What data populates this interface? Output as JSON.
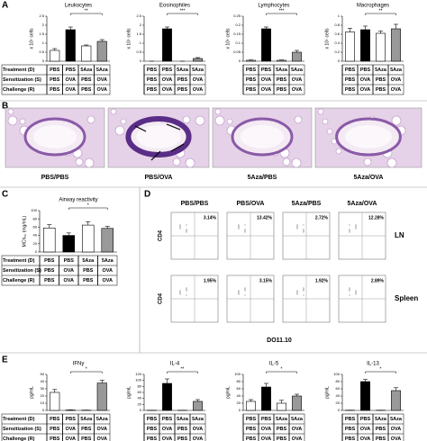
{
  "panel_labels": [
    "A",
    "B",
    "C",
    "D",
    "E"
  ],
  "condition_table": {
    "rows": [
      {
        "label": "Treatment (D)",
        "cells": [
          "PBS",
          "PBS",
          "5Aza",
          "5Aza"
        ]
      },
      {
        "label": "Sensitization (S)",
        "cells": [
          "PBS",
          "OVA",
          "PBS",
          "OVA"
        ]
      },
      {
        "label": "Challenge (R)",
        "cells": [
          "PBS",
          "OVA",
          "PBS",
          "OVA"
        ]
      }
    ]
  },
  "chart_data": [
    {
      "type": "bar",
      "title": "Leukocytes",
      "y_label": "x 10⁵ cells",
      "categories": [
        null,
        null,
        null,
        null
      ],
      "values": [
        0.6,
        1.75,
        0.85,
        1.1
      ],
      "errors": [
        0.1,
        0.15,
        0.05,
        0.1
      ],
      "colors": [
        "#ffffff",
        "#000000",
        "#ffffff",
        "#999999"
      ],
      "ylim": [
        0,
        2.5
      ],
      "yticks": [
        0,
        0.5,
        1,
        1.5,
        2,
        2.5
      ],
      "annotation": "**"
    },
    {
      "type": "bar",
      "title": "Eosinophiles",
      "y_label": "x 10⁵ cells",
      "categories": [
        null,
        null,
        null,
        null
      ],
      "values": [
        0,
        1.8,
        0,
        0.15
      ],
      "errors": [
        0,
        0.1,
        0,
        0.05
      ],
      "colors": [
        "#ffffff",
        "#000000",
        "#ffffff",
        "#999999"
      ],
      "ylim": [
        0,
        2.5
      ],
      "yticks": [
        0,
        0.5,
        1,
        1.5,
        2,
        2.5
      ],
      "annotation": "***"
    },
    {
      "type": "bar",
      "title": "Lymphocytes",
      "y_label": "x 10⁵ cells",
      "categories": [
        null,
        null,
        null,
        null
      ],
      "values": [
        0.005,
        0.18,
        0.005,
        0.05
      ],
      "errors": [
        0.002,
        0.01,
        0.002,
        0.01
      ],
      "colors": [
        "#ffffff",
        "#000000",
        "#ffffff",
        "#999999"
      ],
      "ylim": [
        0,
        0.25
      ],
      "yticks": [
        0,
        0.05,
        0.1,
        0.15,
        0.2,
        0.25
      ],
      "annotation": "***"
    },
    {
      "type": "bar",
      "title": "Macrophages",
      "y_label": "x 10⁵ cells",
      "categories": [
        null,
        null,
        null,
        null
      ],
      "values": [
        0.65,
        0.7,
        0.62,
        0.72
      ],
      "errors": [
        0.08,
        0.08,
        0.05,
        0.1
      ],
      "colors": [
        "#ffffff",
        "#000000",
        "#ffffff",
        "#999999"
      ],
      "ylim": [
        0,
        1
      ],
      "yticks": [
        0,
        0.2,
        0.4,
        0.6,
        0.8,
        1
      ],
      "annotation": "**"
    },
    {
      "type": "bar",
      "title": "Airway reactivity",
      "y_label": "MCh₅₀ (mg/mL)",
      "categories": [
        null,
        null,
        null,
        null
      ],
      "values": [
        58,
        40,
        65,
        57
      ],
      "errors": [
        8,
        6,
        8,
        5
      ],
      "colors": [
        "#ffffff",
        "#000000",
        "#ffffff",
        "#999999"
      ],
      "ylim": [
        0,
        100
      ],
      "yticks": [
        0,
        20,
        40,
        60,
        80,
        100
      ],
      "annotation": "*"
    },
    {
      "type": "bar",
      "title": "IFNγ",
      "y_label": "pg/mL",
      "categories": [
        null,
        null,
        null,
        null
      ],
      "values": [
        25,
        0.5,
        0.3,
        38
      ],
      "errors": [
        4,
        0.2,
        0.1,
        4
      ],
      "colors": [
        "#ffffff",
        "#000000",
        "#ffffff",
        "#999999"
      ],
      "ylim": [
        0,
        50
      ],
      "yticks": [
        0,
        10,
        20,
        30,
        40,
        50
      ],
      "annotation": "*"
    },
    {
      "type": "bar",
      "title": "IL-4",
      "y_label": "pg/mL",
      "categories": [
        null,
        null,
        null,
        null
      ],
      "values": [
        0.5,
        90,
        0.5,
        30
      ],
      "errors": [
        0.2,
        15,
        0.2,
        6
      ],
      "colors": [
        "#ffffff",
        "#000000",
        "#ffffff",
        "#999999"
      ],
      "ylim": [
        0,
        120
      ],
      "yticks": [
        0,
        20,
        40,
        60,
        80,
        100,
        120
      ],
      "annotation": "**"
    },
    {
      "type": "bar",
      "title": "IL-5",
      "y_label": "pg/mL",
      "categories": [
        null,
        null,
        null,
        null
      ],
      "values": [
        25,
        65,
        20,
        40
      ],
      "errors": [
        5,
        10,
        8,
        5
      ],
      "colors": [
        "#ffffff",
        "#000000",
        "#ffffff",
        "#999999"
      ],
      "ylim": [
        0,
        100
      ],
      "yticks": [
        0,
        20,
        40,
        60,
        80,
        100
      ],
      "annotation": "*"
    },
    {
      "type": "bar",
      "title": "IL-13",
      "y_label": "pg/mL",
      "categories": [
        null,
        null,
        null,
        null
      ],
      "values": [
        0.5,
        80,
        0.5,
        55
      ],
      "errors": [
        0.2,
        6,
        0.2,
        8
      ],
      "colors": [
        "#ffffff",
        "#000000",
        "#ffffff",
        "#999999"
      ],
      "ylim": [
        0,
        100
      ],
      "yticks": [
        0,
        20,
        40,
        60,
        80,
        100
      ],
      "annotation": "*"
    }
  ],
  "histology": {
    "labels": [
      "PBS/PBS",
      "PBS/OVA",
      "5Aza/PBS",
      "5Aza/OVA"
    ]
  },
  "flow": {
    "columns": [
      "PBS/PBS",
      "PBS/OVA",
      "5Aza/PBS",
      "5Aza/OVA"
    ],
    "x_label": "DO11.10",
    "y_label": "CD4",
    "rows": [
      {
        "label": "LN",
        "percentages": [
          "3.14%",
          "13.42%",
          "2.72%",
          "12.28%"
        ]
      },
      {
        "label": "Spleen",
        "percentages": [
          "1.95%",
          "3.15%",
          "1.92%",
          "2.89%"
        ]
      }
    ]
  }
}
